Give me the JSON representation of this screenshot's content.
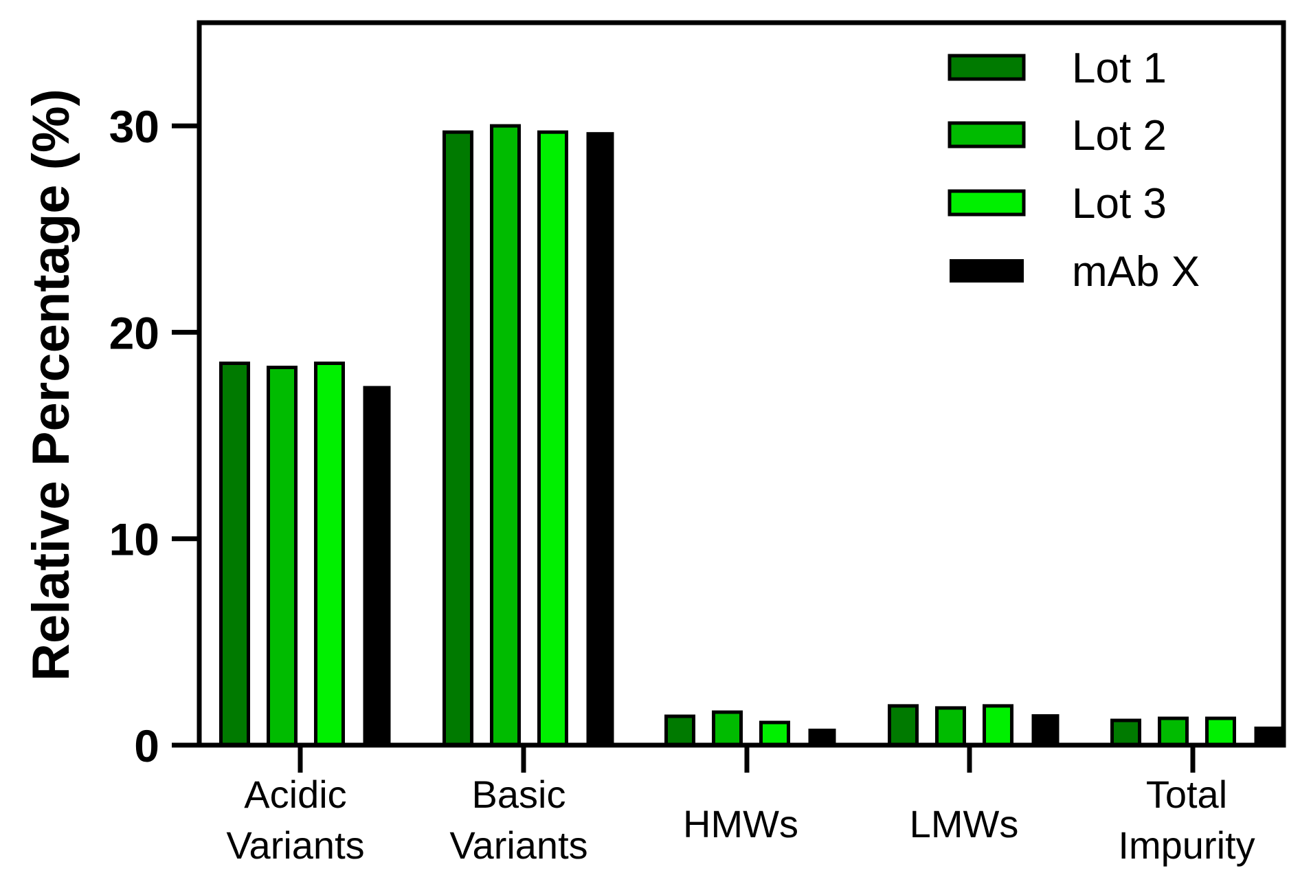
{
  "chart_data": {
    "type": "bar",
    "title": "",
    "xlabel": "",
    "ylabel": "Relative  Percentage (%)",
    "ylim": [
      0,
      35
    ],
    "yticks": [
      0,
      10,
      20,
      30
    ],
    "legend_position": "top-right",
    "grid": false,
    "categories": [
      [
        "Acidic",
        "Variants"
      ],
      [
        "Basic",
        "Variants"
      ],
      [
        "HMWs"
      ],
      [
        "LMWs"
      ],
      [
        "Total",
        "Impurity"
      ]
    ],
    "series": [
      {
        "name": "Lot 1",
        "color": "#007A00",
        "values": [
          18.5,
          29.7,
          1.4,
          1.9,
          1.2
        ]
      },
      {
        "name": "Lot 2",
        "color": "#00BB00",
        "values": [
          18.3,
          30.0,
          1.6,
          1.8,
          1.3
        ]
      },
      {
        "name": "Lot 3",
        "color": "#00F000",
        "values": [
          18.5,
          29.7,
          1.1,
          1.9,
          1.3
        ]
      },
      {
        "name": "mAb X",
        "color": "#000000",
        "values": [
          17.4,
          29.7,
          0.8,
          1.5,
          0.9
        ]
      }
    ]
  }
}
